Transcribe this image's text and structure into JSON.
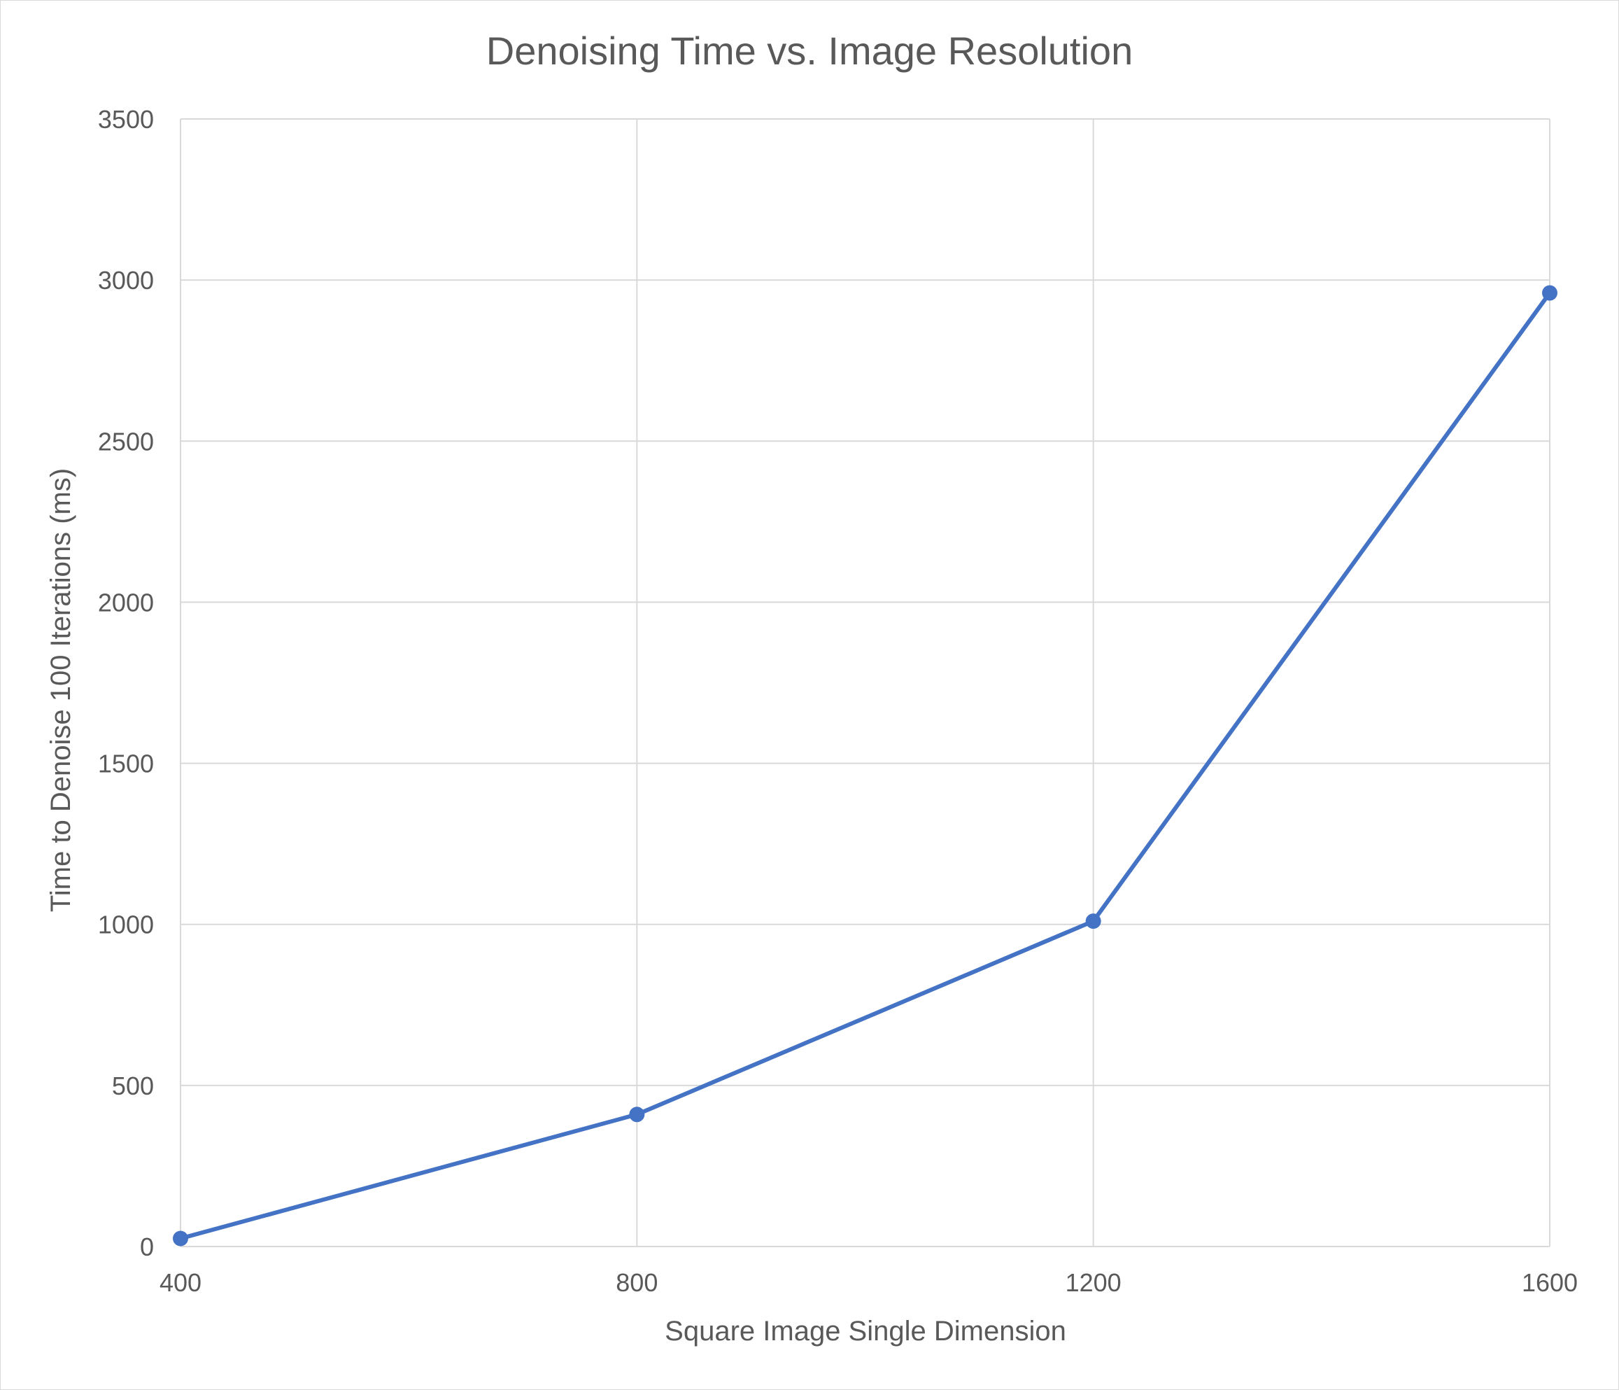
{
  "chart_data": {
    "type": "line",
    "title": "Denoising Time vs. Image Resolution",
    "xlabel": "Square Image Single Dimension",
    "ylabel": "Time to Denoise 100 Iterations (ms)",
    "x": [
      400,
      800,
      1200,
      1600
    ],
    "xticks": [
      "400",
      "800",
      "1200",
      "1600"
    ],
    "xlim": [
      400,
      1600
    ],
    "yticks": [
      "0",
      "500",
      "1000",
      "1500",
      "2000",
      "2500",
      "3000",
      "3500"
    ],
    "ylim": [
      0,
      3500
    ],
    "grid": true,
    "legend": "none",
    "series": [
      {
        "values": [
          25,
          410,
          1010,
          2960
        ],
        "color": "#4472c4"
      }
    ]
  }
}
